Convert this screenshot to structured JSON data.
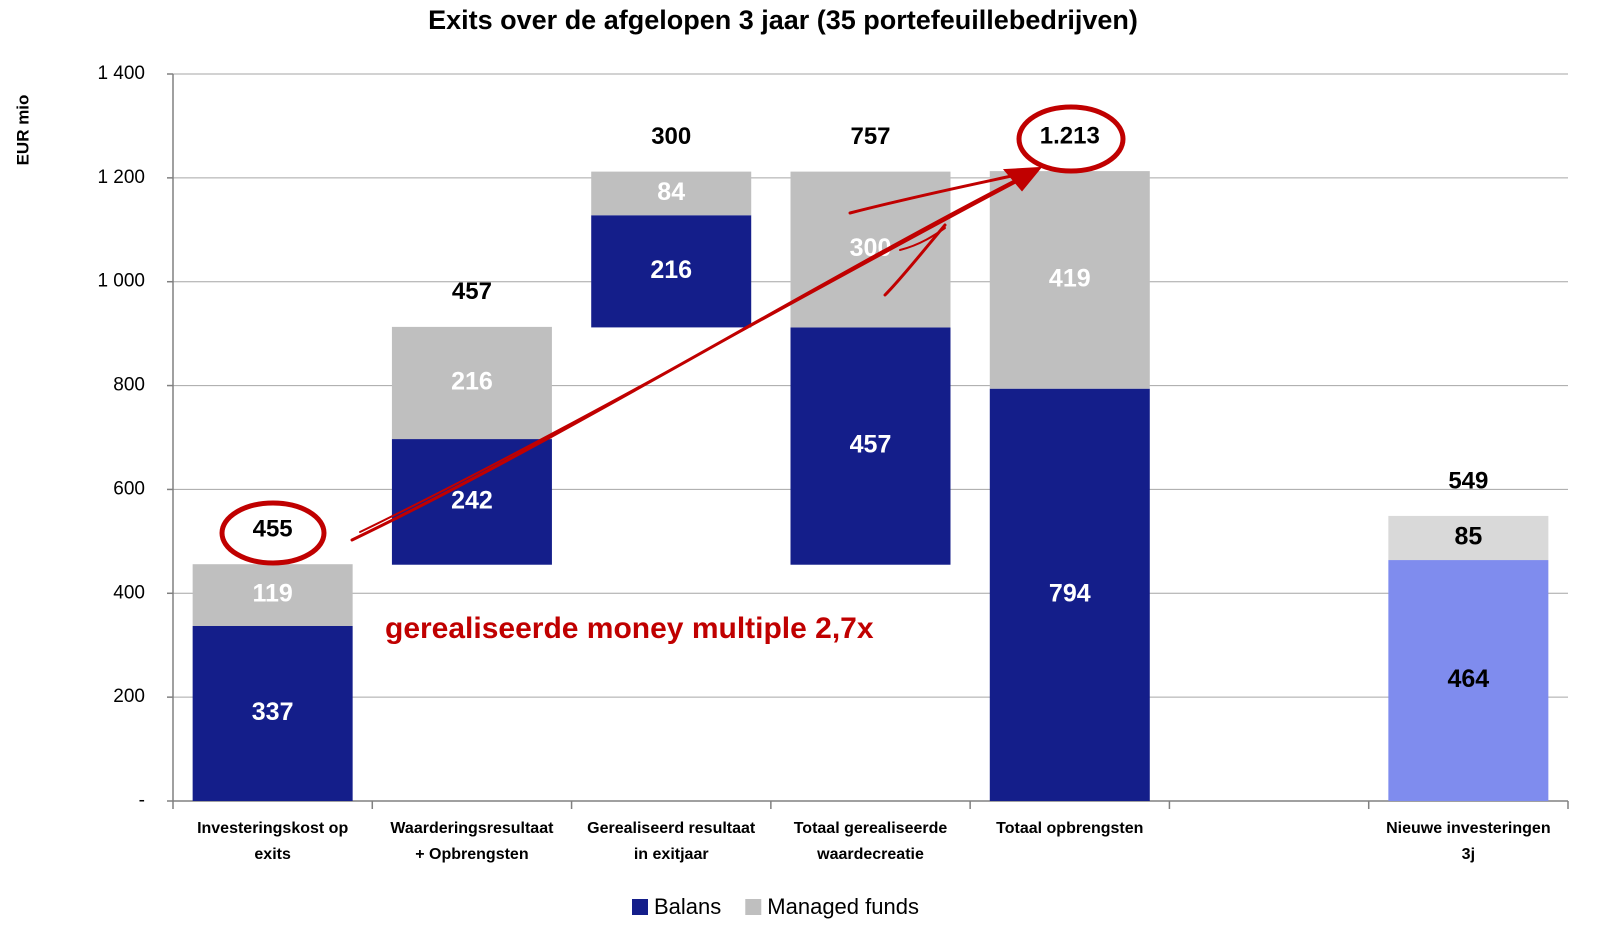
{
  "chart_data": {
    "type": "waterfall",
    "title": "Exits over de afgelopen 3 jaar (35 portefeuillebedrijven)",
    "y_label": "EUR mio",
    "categories": [
      "Investeringskost op exits",
      "Waarderingsresultaat + Opbrengsten",
      "Gerealiseerd resultaat in exitjaar",
      "Totaal gerealiseerde waardecreatie",
      "Totaal opbrengsten",
      null,
      "Nieuwe investeringen 3j"
    ],
    "rests_on": [
      [],
      [
        0
      ],
      [
        0,
        1
      ],
      [
        0
      ],
      [],
      [],
      []
    ],
    "series": [
      {
        "name": "Balans",
        "color": "#141e8a",
        "colors": [
          "#141e8a",
          "#141e8a",
          "#141e8a",
          "#141e8a",
          "#141e8a",
          null,
          "#7f8cee"
        ],
        "label_colors": [
          "#ffffff",
          "#ffffff",
          "#ffffff",
          "#ffffff",
          "#ffffff",
          null,
          "#000000"
        ],
        "values": [
          337,
          242,
          216,
          457,
          794,
          null,
          464
        ]
      },
      {
        "name": "Managed funds",
        "color": "#bfbfbf",
        "colors": [
          "#bfbfbf",
          "#bfbfbf",
          "#bfbfbf",
          "#bfbfbf",
          "#bfbfbf",
          null,
          "#d9d9d9"
        ],
        "label_colors": [
          "#ffffff",
          "#ffffff",
          "#ffffff",
          "#ffffff",
          "#ffffff",
          null,
          "#000000"
        ],
        "values": [
          119,
          216,
          84,
          300,
          419,
          null,
          85
        ]
      }
    ],
    "totals": {
      "values": [
        455,
        457,
        300,
        757,
        1213,
        null,
        549
      ],
      "value_labels": [
        "455",
        "457",
        "300",
        "757",
        "1.213",
        null,
        "549"
      ]
    },
    "annotation": "gerealiseerde money multiple 2,7x",
    "annotation_color": "#c00000",
    "ylim": [
      0,
      1400
    ],
    "yticks": [
      {
        "value": 0,
        "label": "-"
      },
      200,
      400,
      600,
      800,
      {
        "value": 1000,
        "label": "1 000"
      },
      {
        "value": 1200,
        "label": "1 200"
      },
      {
        "value": 1400,
        "label": "1 400"
      }
    ],
    "grid": true,
    "legend": "bottom"
  }
}
